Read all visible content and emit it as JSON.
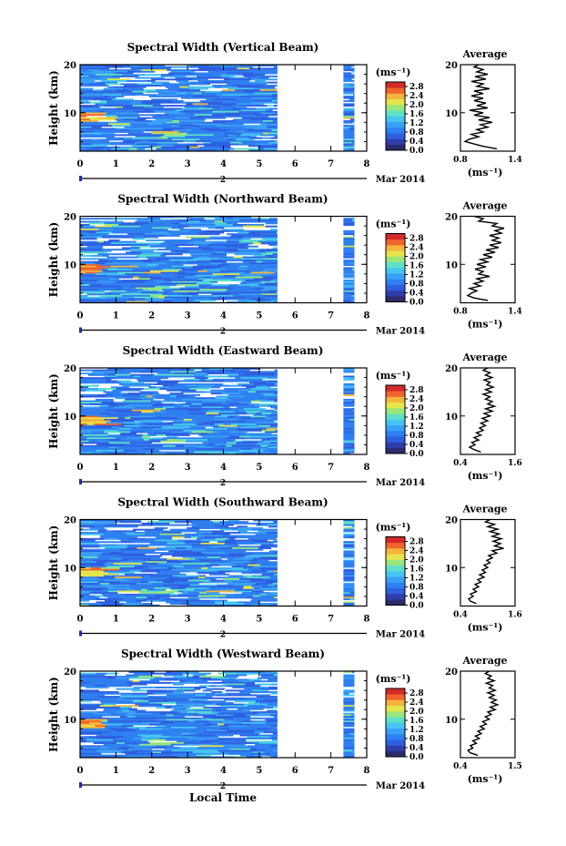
{
  "chart_data": {
    "type": "heatmap",
    "x_axis_title": "Local Time",
    "date_label": "Mar 2014",
    "date_day": "2",
    "time_ticks": [
      "0",
      "1",
      "2",
      "3",
      "4",
      "5",
      "6",
      "7",
      "8"
    ],
    "xlim": [
      0,
      8
    ],
    "data_coverage_hours": [
      [
        0,
        5.5
      ],
      [
        7.35,
        7.65
      ]
    ],
    "ylabel": "Height (km)",
    "ylim_km": [
      2,
      20
    ],
    "height_ticks": [
      "10",
      "20"
    ],
    "colorbar": {
      "unit": "(ms⁻¹)",
      "ticks": [
        "0.0",
        "0.4",
        "0.8",
        "1.2",
        "1.6",
        "2.0",
        "2.4",
        "2.8"
      ],
      "range": [
        0,
        3.0
      ],
      "colors": [
        "#2b2b6e",
        "#2f3ea8",
        "#2f5fe0",
        "#2f7ff0",
        "#3aa0f5",
        "#45c6f0",
        "#5ee0c8",
        "#9ae67a",
        "#e6e64a",
        "#f5b43c",
        "#f0642d",
        "#d22a2a"
      ]
    },
    "avg_title": "Average",
    "avg_xlabel": "(ms⁻¹)",
    "avg_height_ticks": [
      "10",
      "20"
    ],
    "panels": [
      {
        "title": "Spectral Width (Vertical Beam)",
        "avg_xticks": [
          "0.8",
          "1.4"
        ],
        "avg_xlim": [
          0.8,
          1.4
        ],
        "avg_profile": [
          [
            1.2,
            2.5
          ],
          [
            1.05,
            3.0
          ],
          [
            0.95,
            3.5
          ],
          [
            0.85,
            4.0
          ],
          [
            0.9,
            4.5
          ],
          [
            1.0,
            5.0
          ],
          [
            0.92,
            5.5
          ],
          [
            1.05,
            6.0
          ],
          [
            0.98,
            6.5
          ],
          [
            1.1,
            7.0
          ],
          [
            1.02,
            7.5
          ],
          [
            1.15,
            8.0
          ],
          [
            1.0,
            8.5
          ],
          [
            1.12,
            9.0
          ],
          [
            0.95,
            9.5
          ],
          [
            1.05,
            10.0
          ],
          [
            0.9,
            10.5
          ],
          [
            1.1,
            11.0
          ],
          [
            0.98,
            11.5
          ],
          [
            1.08,
            12.0
          ],
          [
            0.95,
            12.5
          ],
          [
            1.05,
            13.0
          ],
          [
            0.92,
            13.5
          ],
          [
            1.05,
            14.0
          ],
          [
            0.95,
            14.5
          ],
          [
            1.12,
            15.0
          ],
          [
            0.98,
            15.5
          ],
          [
            1.05,
            16.0
          ],
          [
            0.92,
            16.5
          ],
          [
            1.08,
            17.0
          ],
          [
            0.96,
            17.5
          ],
          [
            1.1,
            18.0
          ],
          [
            0.98,
            18.5
          ],
          [
            1.05,
            19.0
          ],
          [
            0.95,
            19.5
          ],
          [
            1.0,
            20.0
          ]
        ]
      },
      {
        "title": "Spectral Width (Northward Beam)",
        "avg_xticks": [
          "0.8",
          "1.4"
        ],
        "avg_xlim": [
          0.8,
          1.4
        ],
        "avg_profile": [
          [
            1.1,
            2.5
          ],
          [
            0.95,
            3.0
          ],
          [
            0.88,
            3.5
          ],
          [
            0.92,
            4.0
          ],
          [
            0.98,
            4.5
          ],
          [
            0.9,
            5.0
          ],
          [
            1.02,
            5.5
          ],
          [
            0.95,
            6.0
          ],
          [
            1.05,
            6.5
          ],
          [
            0.98,
            7.0
          ],
          [
            1.12,
            7.5
          ],
          [
            1.0,
            8.0
          ],
          [
            1.05,
            8.5
          ],
          [
            0.96,
            9.0
          ],
          [
            1.08,
            9.5
          ],
          [
            0.98,
            10.0
          ],
          [
            1.1,
            10.5
          ],
          [
            1.02,
            11.0
          ],
          [
            1.15,
            11.5
          ],
          [
            1.05,
            12.0
          ],
          [
            1.18,
            12.5
          ],
          [
            1.08,
            13.0
          ],
          [
            1.22,
            13.5
          ],
          [
            1.12,
            14.0
          ],
          [
            1.25,
            14.5
          ],
          [
            1.15,
            15.0
          ],
          [
            1.22,
            15.5
          ],
          [
            1.12,
            16.0
          ],
          [
            1.25,
            16.5
          ],
          [
            1.18,
            17.0
          ],
          [
            1.28,
            17.5
          ],
          [
            1.15,
            18.0
          ],
          [
            1.2,
            18.5
          ],
          [
            1.0,
            19.0
          ],
          [
            1.05,
            19.5
          ],
          [
            0.95,
            20.0
          ]
        ]
      },
      {
        "title": "Spectral Width (Eastward Beam)",
        "avg_xticks": [
          "0.4",
          "1.6"
        ],
        "avg_xlim": [
          0.4,
          1.6
        ],
        "avg_profile": [
          [
            0.85,
            2.5
          ],
          [
            0.7,
            3.0
          ],
          [
            0.6,
            3.5
          ],
          [
            0.72,
            4.0
          ],
          [
            0.65,
            4.5
          ],
          [
            0.8,
            5.0
          ],
          [
            0.7,
            5.5
          ],
          [
            0.85,
            6.0
          ],
          [
            0.75,
            6.5
          ],
          [
            0.9,
            7.0
          ],
          [
            0.82,
            7.5
          ],
          [
            0.95,
            8.0
          ],
          [
            0.85,
            8.5
          ],
          [
            1.0,
            9.0
          ],
          [
            0.88,
            9.5
          ],
          [
            1.05,
            10.0
          ],
          [
            0.92,
            10.5
          ],
          [
            1.1,
            11.0
          ],
          [
            0.95,
            11.5
          ],
          [
            1.15,
            12.0
          ],
          [
            1.0,
            12.5
          ],
          [
            1.1,
            13.0
          ],
          [
            0.95,
            13.5
          ],
          [
            1.05,
            14.0
          ],
          [
            0.9,
            14.5
          ],
          [
            1.08,
            15.0
          ],
          [
            0.95,
            15.5
          ],
          [
            1.12,
            16.0
          ],
          [
            0.98,
            16.5
          ],
          [
            1.05,
            17.0
          ],
          [
            0.92,
            17.5
          ],
          [
            1.1,
            18.0
          ],
          [
            0.95,
            18.5
          ],
          [
            1.05,
            19.0
          ],
          [
            0.9,
            19.5
          ],
          [
            1.0,
            20.0
          ]
        ]
      },
      {
        "title": "Spectral Width (Southward Beam)",
        "avg_xticks": [
          "0.4",
          "1.6"
        ],
        "avg_xlim": [
          0.4,
          1.6
        ],
        "avg_profile": [
          [
            0.75,
            2.5
          ],
          [
            0.62,
            3.0
          ],
          [
            0.58,
            3.5
          ],
          [
            0.68,
            4.0
          ],
          [
            0.62,
            4.5
          ],
          [
            0.75,
            5.0
          ],
          [
            0.68,
            5.5
          ],
          [
            0.8,
            6.0
          ],
          [
            0.72,
            6.5
          ],
          [
            0.85,
            7.0
          ],
          [
            0.78,
            7.5
          ],
          [
            0.92,
            8.0
          ],
          [
            0.82,
            8.5
          ],
          [
            0.95,
            9.0
          ],
          [
            0.88,
            9.5
          ],
          [
            1.0,
            10.0
          ],
          [
            0.92,
            10.5
          ],
          [
            1.05,
            11.0
          ],
          [
            0.98,
            11.5
          ],
          [
            1.1,
            12.0
          ],
          [
            1.02,
            12.5
          ],
          [
            1.2,
            13.0
          ],
          [
            1.1,
            13.5
          ],
          [
            1.35,
            14.0
          ],
          [
            1.15,
            14.5
          ],
          [
            1.28,
            15.0
          ],
          [
            1.12,
            15.5
          ],
          [
            1.3,
            16.0
          ],
          [
            1.1,
            16.5
          ],
          [
            1.25,
            17.0
          ],
          [
            1.05,
            17.5
          ],
          [
            1.22,
            18.0
          ],
          [
            1.0,
            18.5
          ],
          [
            1.15,
            19.0
          ],
          [
            0.95,
            19.5
          ],
          [
            1.05,
            20.0
          ]
        ]
      },
      {
        "title": "Spectral Width (Westward Beam)",
        "avg_xticks": [
          "0.4",
          "1.5"
        ],
        "avg_xlim": [
          0.4,
          1.5
        ],
        "avg_profile": [
          [
            0.75,
            2.5
          ],
          [
            0.6,
            3.0
          ],
          [
            0.55,
            3.5
          ],
          [
            0.65,
            4.0
          ],
          [
            0.6,
            4.5
          ],
          [
            0.72,
            5.0
          ],
          [
            0.65,
            5.5
          ],
          [
            0.78,
            6.0
          ],
          [
            0.7,
            6.5
          ],
          [
            0.82,
            7.0
          ],
          [
            0.75,
            7.5
          ],
          [
            0.88,
            8.0
          ],
          [
            0.8,
            8.5
          ],
          [
            0.92,
            9.0
          ],
          [
            0.85,
            9.5
          ],
          [
            0.98,
            10.0
          ],
          [
            0.9,
            10.5
          ],
          [
            1.02,
            11.0
          ],
          [
            0.95,
            11.5
          ],
          [
            1.1,
            12.0
          ],
          [
            1.0,
            12.5
          ],
          [
            1.15,
            13.0
          ],
          [
            1.02,
            13.5
          ],
          [
            1.12,
            14.0
          ],
          [
            0.98,
            14.5
          ],
          [
            1.08,
            15.0
          ],
          [
            0.95,
            15.5
          ],
          [
            1.1,
            16.0
          ],
          [
            0.98,
            16.5
          ],
          [
            1.05,
            17.0
          ],
          [
            0.92,
            17.5
          ],
          [
            1.08,
            18.0
          ],
          [
            0.95,
            18.5
          ],
          [
            1.02,
            19.0
          ],
          [
            0.9,
            19.5
          ],
          [
            0.98,
            20.0
          ]
        ]
      }
    ]
  }
}
